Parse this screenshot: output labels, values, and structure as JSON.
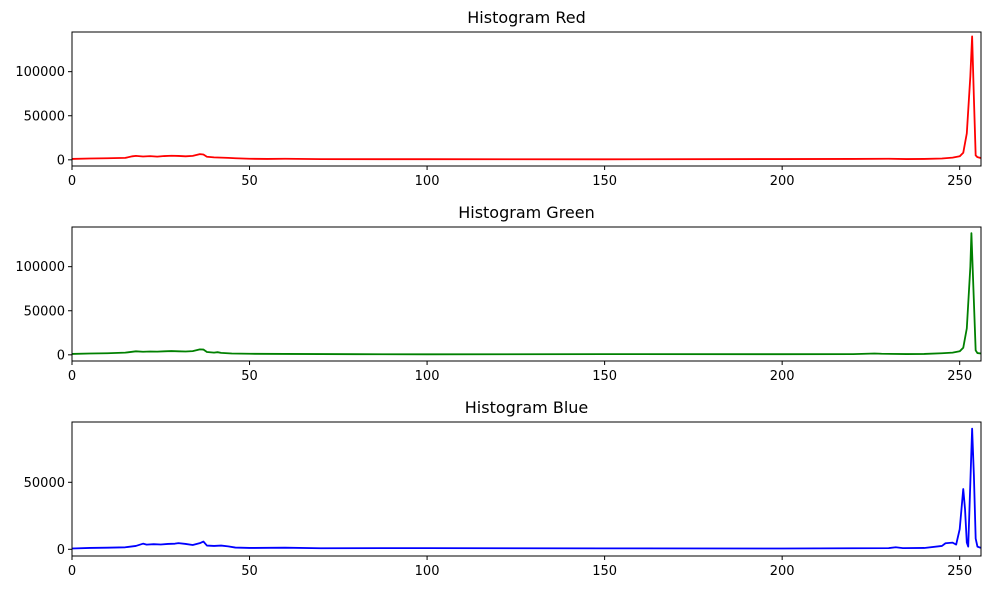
{
  "chart_data": [
    {
      "type": "line",
      "title": "Histogram Red",
      "color": "#ff0000",
      "xlim": [
        0,
        256
      ],
      "ylim": [
        -7000,
        145000
      ],
      "xticks": [
        0,
        50,
        100,
        150,
        200,
        250
      ],
      "yticks": [
        0,
        50000,
        100000
      ],
      "ytick_labels": [
        "0",
        "50000",
        "100000"
      ],
      "series": [
        {
          "points": [
            [
              0,
              1000
            ],
            [
              5,
              1500
            ],
            [
              10,
              1800
            ],
            [
              15,
              2200
            ],
            [
              17,
              4000
            ],
            [
              18,
              4500
            ],
            [
              20,
              3800
            ],
            [
              22,
              4200
            ],
            [
              24,
              3600
            ],
            [
              26,
              4300
            ],
            [
              28,
              4600
            ],
            [
              30,
              4400
            ],
            [
              32,
              4000
            ],
            [
              34,
              4500
            ],
            [
              36,
              6500
            ],
            [
              37,
              6000
            ],
            [
              38,
              3500
            ],
            [
              40,
              2800
            ],
            [
              42,
              2500
            ],
            [
              44,
              2200
            ],
            [
              46,
              1800
            ],
            [
              50,
              1200
            ],
            [
              55,
              1000
            ],
            [
              60,
              1200
            ],
            [
              70,
              800
            ],
            [
              100,
              700
            ],
            [
              150,
              600
            ],
            [
              200,
              900
            ],
            [
              220,
              1000
            ],
            [
              230,
              1200
            ],
            [
              235,
              900
            ],
            [
              240,
              1000
            ],
            [
              245,
              1500
            ],
            [
              248,
              2500
            ],
            [
              250,
              4000
            ],
            [
              251,
              8000
            ],
            [
              252,
              30000
            ],
            [
              253,
              95000
            ],
            [
              253.5,
              140000
            ],
            [
              254,
              70000
            ],
            [
              254.5,
              5000
            ],
            [
              255,
              3000
            ],
            [
              256,
              2000
            ]
          ]
        }
      ]
    },
    {
      "type": "line",
      "title": "Histogram Green",
      "color": "#008000",
      "xlim": [
        0,
        256
      ],
      "ylim": [
        -7000,
        145000
      ],
      "xticks": [
        0,
        50,
        100,
        150,
        200,
        250
      ],
      "yticks": [
        0,
        50000,
        100000
      ],
      "ytick_labels": [
        "0",
        "50000",
        "100000"
      ],
      "series": [
        {
          "points": [
            [
              0,
              1000
            ],
            [
              5,
              1500
            ],
            [
              10,
              1800
            ],
            [
              15,
              2500
            ],
            [
              18,
              4000
            ],
            [
              20,
              3500
            ],
            [
              22,
              3800
            ],
            [
              24,
              3600
            ],
            [
              26,
              4000
            ],
            [
              28,
              4300
            ],
            [
              30,
              4000
            ],
            [
              32,
              3800
            ],
            [
              34,
              4200
            ],
            [
              36,
              6200
            ],
            [
              37,
              6000
            ],
            [
              38,
              3200
            ],
            [
              40,
              2500
            ],
            [
              41,
              3000
            ],
            [
              42,
              2200
            ],
            [
              45,
              1500
            ],
            [
              50,
              1200
            ],
            [
              60,
              1000
            ],
            [
              80,
              700
            ],
            [
              100,
              600
            ],
            [
              150,
              800
            ],
            [
              200,
              700
            ],
            [
              220,
              800
            ],
            [
              226,
              1500
            ],
            [
              228,
              1200
            ],
            [
              235,
              900
            ],
            [
              240,
              1000
            ],
            [
              245,
              1800
            ],
            [
              248,
              2500
            ],
            [
              250,
              4000
            ],
            [
              251,
              8000
            ],
            [
              252,
              30000
            ],
            [
              253,
              100000
            ],
            [
              253.3,
              138000
            ],
            [
              254,
              60000
            ],
            [
              254.5,
              5000
            ],
            [
              255,
              2000
            ],
            [
              256,
              1500
            ]
          ]
        }
      ]
    },
    {
      "type": "line",
      "title": "Histogram Blue",
      "color": "#0000ff",
      "xlim": [
        0,
        256
      ],
      "ylim": [
        -5000,
        95000
      ],
      "xticks": [
        0,
        50,
        100,
        150,
        200,
        250
      ],
      "yticks": [
        0,
        50000
      ],
      "ytick_labels": [
        "0",
        "50000"
      ],
      "series": [
        {
          "points": [
            [
              0,
              600
            ],
            [
              5,
              1000
            ],
            [
              10,
              1200
            ],
            [
              15,
              1500
            ],
            [
              18,
              2500
            ],
            [
              20,
              4200
            ],
            [
              21,
              3500
            ],
            [
              23,
              3800
            ],
            [
              25,
              3600
            ],
            [
              27,
              4000
            ],
            [
              29,
              4200
            ],
            [
              30,
              4600
            ],
            [
              32,
              4000
            ],
            [
              34,
              3200
            ],
            [
              36,
              4600
            ],
            [
              37,
              5800
            ],
            [
              38,
              2800
            ],
            [
              40,
              2500
            ],
            [
              42,
              2800
            ],
            [
              44,
              2200
            ],
            [
              46,
              1300
            ],
            [
              50,
              1000
            ],
            [
              60,
              1200
            ],
            [
              70,
              800
            ],
            [
              100,
              900
            ],
            [
              150,
              700
            ],
            [
              200,
              600
            ],
            [
              220,
              800
            ],
            [
              230,
              900
            ],
            [
              232,
              1500
            ],
            [
              234,
              900
            ],
            [
              240,
              1000
            ],
            [
              245,
              2500
            ],
            [
              246,
              4500
            ],
            [
              248,
              5000
            ],
            [
              249,
              3500
            ],
            [
              250,
              15000
            ],
            [
              251,
              45000
            ],
            [
              251.5,
              30000
            ],
            [
              252,
              5000
            ],
            [
              252.4,
              2000
            ],
            [
              253,
              50000
            ],
            [
              253.5,
              90000
            ],
            [
              254,
              55000
            ],
            [
              254.5,
              8000
            ],
            [
              255,
              2000
            ],
            [
              256,
              1000
            ]
          ]
        }
      ]
    }
  ]
}
